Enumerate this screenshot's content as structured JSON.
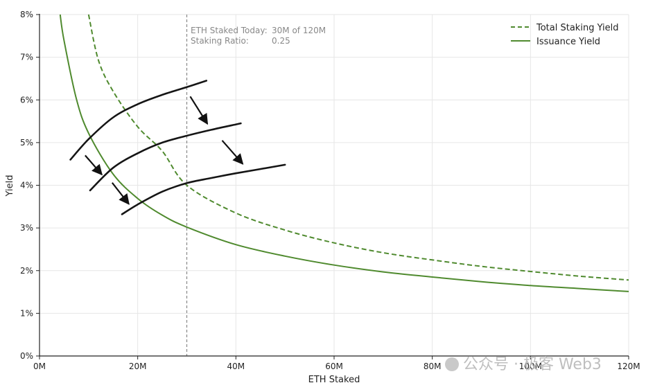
{
  "chart_data": {
    "type": "line",
    "xlabel": "ETH Staked",
    "ylabel": "Yield",
    "xlim": [
      0,
      120
    ],
    "ylim": [
      0,
      8
    ],
    "x_ticks": [
      "0M",
      "20M",
      "40M",
      "60M",
      "80M",
      "100M",
      "120M"
    ],
    "y_ticks": [
      "0%",
      "1%",
      "2%",
      "3%",
      "4%",
      "5%",
      "6%",
      "7%",
      "8%"
    ],
    "grid": true,
    "legend_position": "top-right",
    "series": [
      {
        "name": "Total Staking Yield",
        "style": "dashed",
        "color": "#4f8a2e",
        "x": [
          10,
          12,
          15,
          20,
          25,
          30,
          40,
          50,
          60,
          70,
          80,
          90,
          100,
          110,
          120
        ],
        "y": [
          8.0,
          6.93,
          6.2,
          5.37,
          4.8,
          4.0,
          3.35,
          2.95,
          2.65,
          2.42,
          2.25,
          2.1,
          1.98,
          1.87,
          1.78
        ]
      },
      {
        "name": "Issuance Yield",
        "style": "solid",
        "color": "#4f8a2e",
        "x": [
          4.2,
          5,
          7.5,
          10,
          15,
          20,
          25,
          30,
          40,
          50,
          60,
          70,
          80,
          90,
          100,
          110,
          120
        ],
        "y": [
          8.0,
          7.39,
          6.03,
          5.22,
          4.26,
          3.69,
          3.3,
          3.02,
          2.61,
          2.34,
          2.13,
          1.97,
          1.85,
          1.74,
          1.65,
          1.58,
          1.51
        ]
      }
    ],
    "reference_line": {
      "x": 30,
      "style": "dashed",
      "color": "#888888"
    },
    "annotation": {
      "line1_label": "ETH Staked Today:",
      "line1_value": "30M of 120M",
      "line2_label": "Staking Ratio:",
      "line2_value": "0.25"
    },
    "handdrawn_curves": [
      {
        "x": [
          6.3,
          10,
          15,
          20,
          25,
          30,
          34
        ],
        "y": [
          4.6,
          5.08,
          5.59,
          5.9,
          6.12,
          6.3,
          6.45
        ]
      },
      {
        "x": [
          10.3,
          15,
          20,
          25,
          30,
          35,
          41
        ],
        "y": [
          3.88,
          4.41,
          4.75,
          5.0,
          5.16,
          5.3,
          5.45
        ]
      },
      {
        "x": [
          16.8,
          20,
          25,
          30,
          35,
          40,
          50
        ],
        "y": [
          3.32,
          3.55,
          3.85,
          4.05,
          4.17,
          4.28,
          4.48
        ]
      }
    ],
    "arrows": [
      {
        "from": [
          9.3,
          4.7
        ],
        "to": [
          12.7,
          4.25
        ]
      },
      {
        "from": [
          14.8,
          4.06
        ],
        "to": [
          18.2,
          3.56
        ]
      },
      {
        "from": [
          30.7,
          6.08
        ],
        "to": [
          34.2,
          5.44
        ]
      },
      {
        "from": [
          37.2,
          5.05
        ],
        "to": [
          41.4,
          4.5
        ]
      }
    ]
  },
  "watermark": {
    "text": "公众号 · 极客 Web3"
  }
}
